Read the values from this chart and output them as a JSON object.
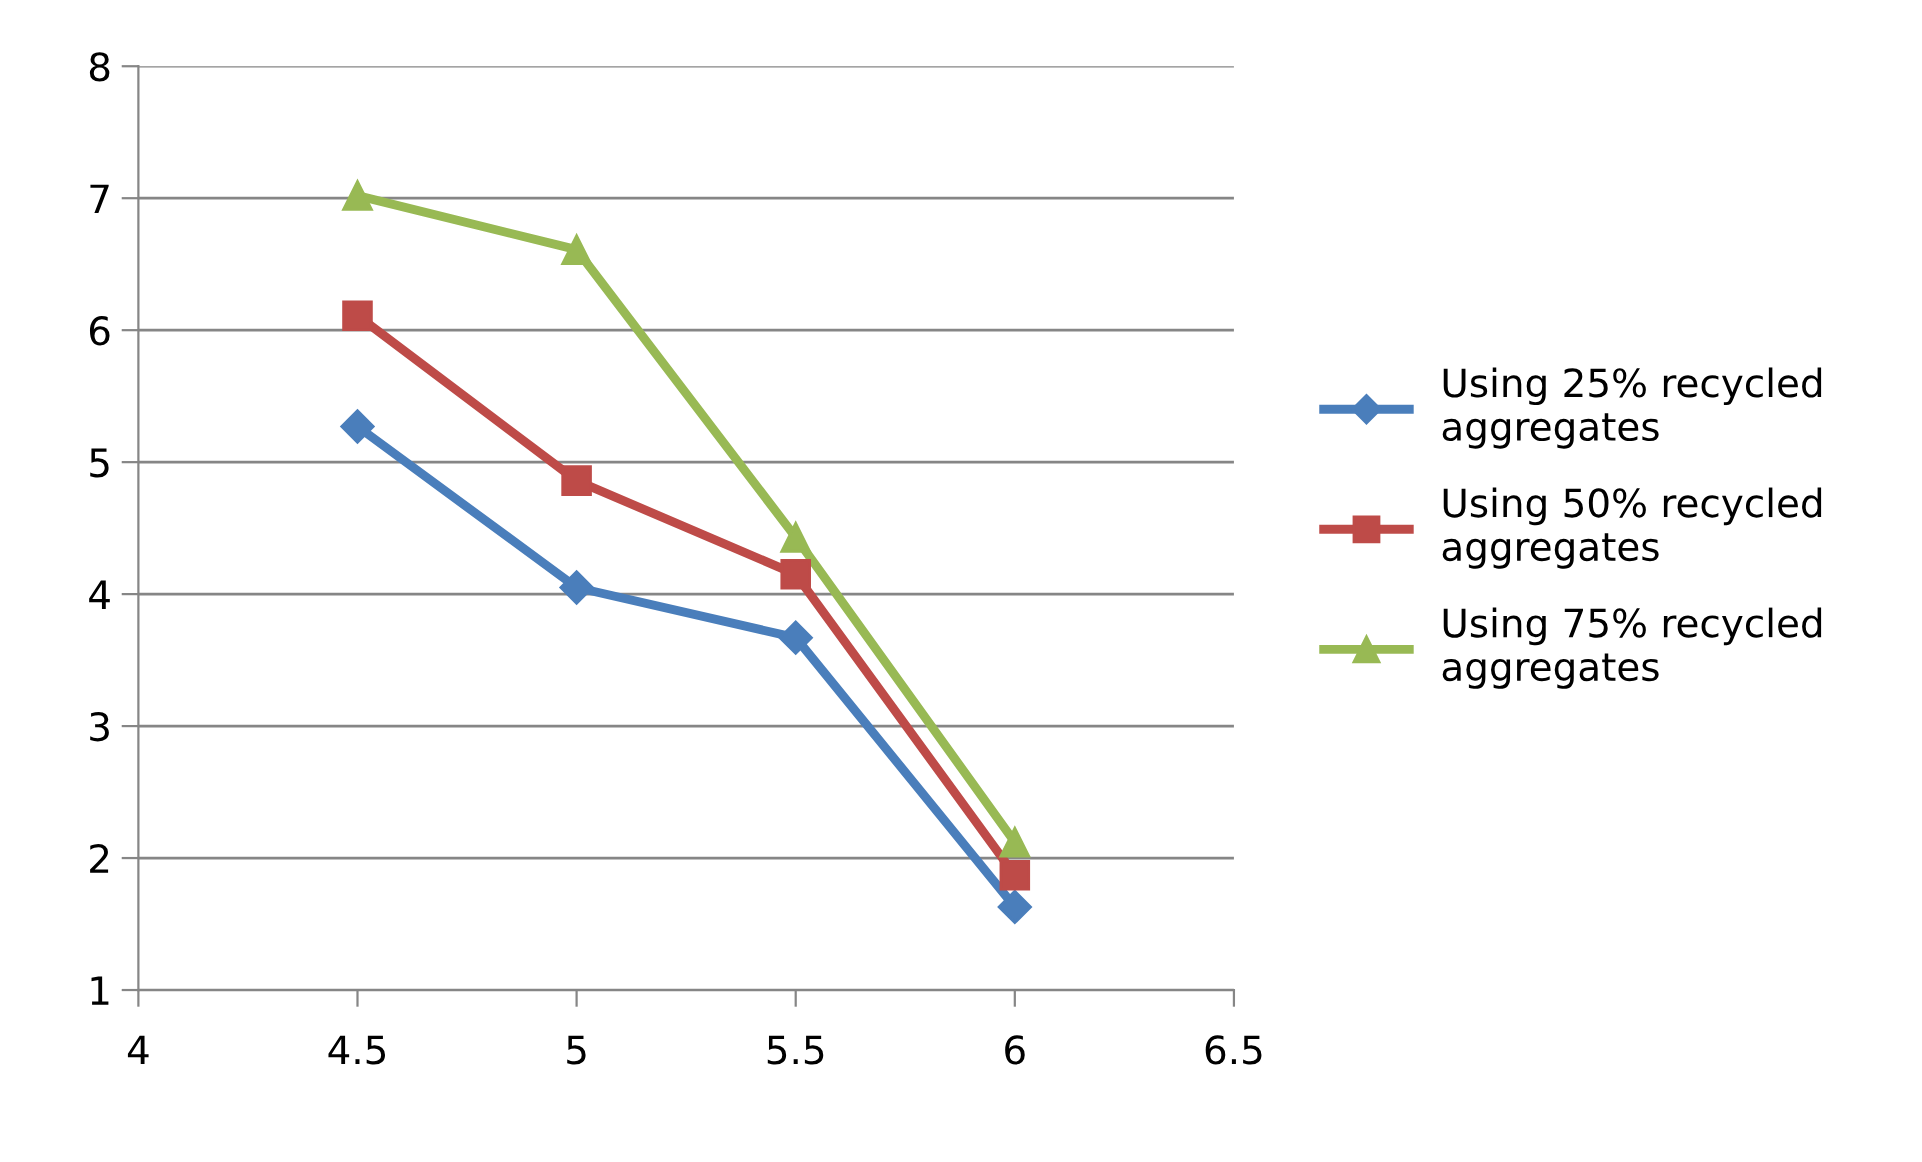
{
  "chart_data": {
    "type": "line",
    "x": [
      4.5,
      5,
      5.5,
      6
    ],
    "xlim": [
      4,
      6.5
    ],
    "xticks": [
      4,
      4.5,
      5,
      5.5,
      6,
      6.5
    ],
    "ylim": [
      1,
      8
    ],
    "yticks": [
      1,
      2,
      3,
      4,
      5,
      6,
      7,
      8
    ],
    "grid": "y",
    "legend": "right",
    "line_style": "solid",
    "series": [
      {
        "name": "Using 25% recycled\naggregates",
        "color": "#4a7ebb",
        "marker": "diamond",
        "values": [
          5.27,
          4.05,
          3.67,
          1.63
        ]
      },
      {
        "name": "Using 50% recycled\naggregates",
        "color": "#be4b48",
        "marker": "square",
        "values": [
          6.11,
          4.86,
          4.15,
          1.87
        ]
      },
      {
        "name": "Using 75% recycled\naggregates",
        "color": "#98b954",
        "marker": "triangle",
        "values": [
          7.02,
          6.61,
          4.43,
          2.12
        ]
      }
    ]
  }
}
